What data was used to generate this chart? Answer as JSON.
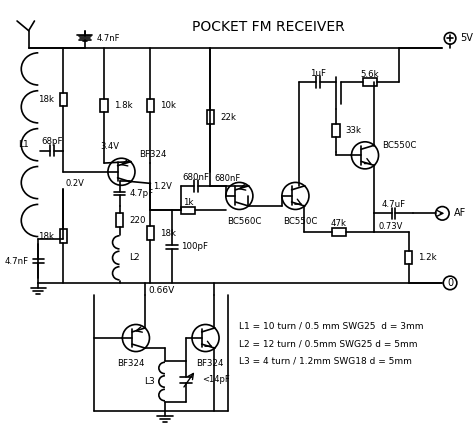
{
  "title": "POCKET FM RECEIVER",
  "background_color": "#ffffff",
  "line_color": "#000000",
  "specs": [
    "L1 = 10 turn / 0.5 mm SWG25  d = 3mm",
    "L2 = 12 turn / 0.5mm SWG25 d = 5mm",
    "L3 = 4 turn / 1.2mm SWG18 d = 5mm"
  ]
}
